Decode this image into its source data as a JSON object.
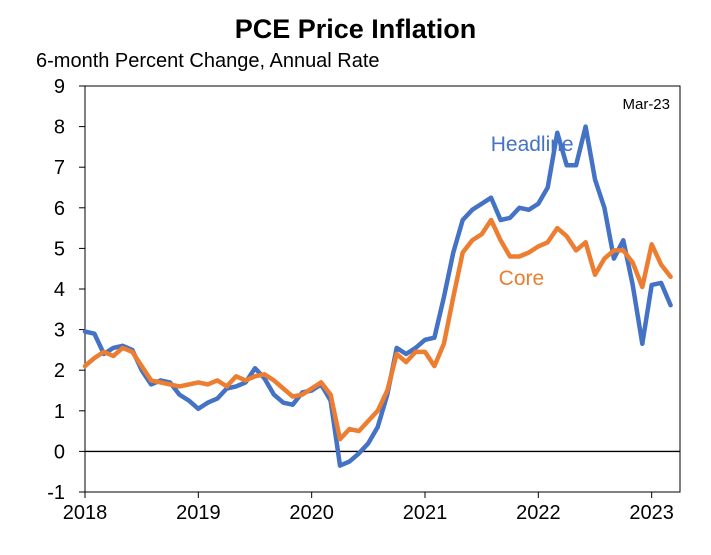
{
  "chart_data": {
    "type": "line",
    "title": "PCE Price Inflation",
    "subtitle": "6-month Percent Change, Annual Rate",
    "date_note": "Mar-23",
    "xlabel": "",
    "ylabel": "",
    "xlim": [
      2018.0,
      2023.25
    ],
    "ylim": [
      -1,
      9
    ],
    "yticks": [
      -1,
      0,
      1,
      2,
      3,
      4,
      5,
      6,
      7,
      8,
      9
    ],
    "xticks": [
      "2018",
      "2019",
      "2020",
      "2021",
      "2022",
      "2023"
    ],
    "grid": false,
    "zero_line": true,
    "series": [
      {
        "name": "Headline",
        "color": "#4472C4",
        "label_pos": [
          2021.58,
          7.4
        ],
        "x": [
          2018.0,
          2018.083,
          2018.167,
          2018.25,
          2018.333,
          2018.417,
          2018.5,
          2018.583,
          2018.667,
          2018.75,
          2018.833,
          2018.917,
          2019.0,
          2019.083,
          2019.167,
          2019.25,
          2019.333,
          2019.417,
          2019.5,
          2019.583,
          2019.667,
          2019.75,
          2019.833,
          2019.917,
          2020.0,
          2020.083,
          2020.167,
          2020.25,
          2020.333,
          2020.417,
          2020.5,
          2020.583,
          2020.667,
          2020.75,
          2020.833,
          2020.917,
          2021.0,
          2021.083,
          2021.167,
          2021.25,
          2021.333,
          2021.417,
          2021.5,
          2021.583,
          2021.667,
          2021.75,
          2021.833,
          2021.917,
          2022.0,
          2022.083,
          2022.167,
          2022.25,
          2022.333,
          2022.417,
          2022.5,
          2022.583,
          2022.667,
          2022.75,
          2022.833,
          2022.917,
          2023.0,
          2023.083,
          2023.167
        ],
        "values": [
          2.95,
          2.9,
          2.4,
          2.55,
          2.6,
          2.5,
          2.0,
          1.65,
          1.75,
          1.7,
          1.4,
          1.25,
          1.05,
          1.2,
          1.3,
          1.55,
          1.6,
          1.7,
          2.05,
          1.8,
          1.4,
          1.2,
          1.15,
          1.45,
          1.5,
          1.65,
          1.25,
          -0.35,
          -0.25,
          -0.05,
          0.2,
          0.6,
          1.4,
          2.55,
          2.4,
          2.55,
          2.75,
          2.8,
          3.8,
          4.9,
          5.7,
          5.95,
          6.1,
          6.25,
          5.7,
          5.75,
          6.0,
          5.95,
          6.1,
          6.5,
          7.85,
          7.05,
          7.05,
          8.0,
          6.7,
          6.0,
          4.75,
          5.2,
          4.1,
          2.65,
          4.1,
          4.15,
          3.6
        ]
      },
      {
        "name": "Core",
        "color": "#ED7D31",
        "label_pos": [
          2021.65,
          4.1
        ],
        "x": [
          2018.0,
          2018.083,
          2018.167,
          2018.25,
          2018.333,
          2018.417,
          2018.5,
          2018.583,
          2018.667,
          2018.75,
          2018.833,
          2018.917,
          2019.0,
          2019.083,
          2019.167,
          2019.25,
          2019.333,
          2019.417,
          2019.5,
          2019.583,
          2019.667,
          2019.75,
          2019.833,
          2019.917,
          2020.0,
          2020.083,
          2020.167,
          2020.25,
          2020.333,
          2020.417,
          2020.5,
          2020.583,
          2020.667,
          2020.75,
          2020.833,
          2020.917,
          2021.0,
          2021.083,
          2021.167,
          2021.25,
          2021.333,
          2021.417,
          2021.5,
          2021.583,
          2021.667,
          2021.75,
          2021.833,
          2021.917,
          2022.0,
          2022.083,
          2022.167,
          2022.25,
          2022.333,
          2022.417,
          2022.5,
          2022.583,
          2022.667,
          2022.75,
          2022.833,
          2022.917,
          2023.0,
          2023.083,
          2023.167
        ],
        "values": [
          2.1,
          2.3,
          2.45,
          2.35,
          2.55,
          2.45,
          2.1,
          1.75,
          1.7,
          1.65,
          1.6,
          1.65,
          1.7,
          1.65,
          1.75,
          1.6,
          1.85,
          1.75,
          1.85,
          1.9,
          1.75,
          1.55,
          1.35,
          1.4,
          1.55,
          1.7,
          1.4,
          0.3,
          0.55,
          0.5,
          0.75,
          1.0,
          1.5,
          2.4,
          2.2,
          2.45,
          2.45,
          2.1,
          2.65,
          3.8,
          4.9,
          5.2,
          5.35,
          5.7,
          5.2,
          4.8,
          4.8,
          4.9,
          5.05,
          5.15,
          5.5,
          5.3,
          4.95,
          5.15,
          4.35,
          4.75,
          4.95,
          4.95,
          4.65,
          4.05,
          5.1,
          4.6,
          4.3
        ]
      }
    ]
  }
}
